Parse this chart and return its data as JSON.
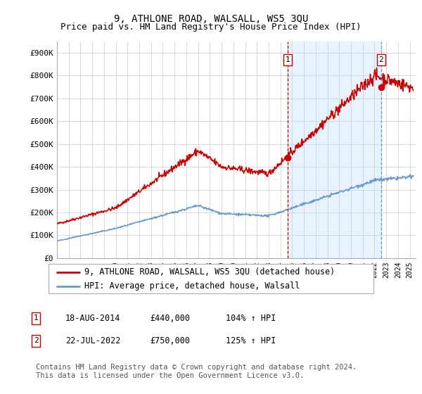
{
  "title": "9, ATHLONE ROAD, WALSALL, WS5 3QU",
  "subtitle": "Price paid vs. HM Land Registry's House Price Index (HPI)",
  "ylabel_ticks": [
    "£0",
    "£100K",
    "£200K",
    "£300K",
    "£400K",
    "£500K",
    "£600K",
    "£700K",
    "£800K",
    "£900K"
  ],
  "ylim": [
    0,
    950000
  ],
  "xlim_start": 1995.0,
  "xlim_end": 2025.5,
  "sale1_date": 2014.625,
  "sale1_price": 440000,
  "sale1_label": "1",
  "sale2_date": 2022.55,
  "sale2_price": 750000,
  "sale2_label": "2",
  "legend_line1": "9, ATHLONE ROAD, WALSALL, WS5 3QU (detached house)",
  "legend_line2": "HPI: Average price, detached house, Walsall",
  "table_row1": [
    "1",
    "18-AUG-2014",
    "£440,000",
    "104% ↑ HPI"
  ],
  "table_row2": [
    "2",
    "22-JUL-2022",
    "£750,000",
    "125% ↑ HPI"
  ],
  "footnote": "Contains HM Land Registry data © Crown copyright and database right 2024.\nThis data is licensed under the Open Government Licence v3.0.",
  "hpi_color": "#6699cc",
  "price_color": "#cc0000",
  "shade_color": "#ddeeff",
  "grid_color": "#cccccc",
  "background_color": "#ffffff",
  "title_fontsize": 10,
  "subtitle_fontsize": 9,
  "tick_label_fontsize": 8,
  "legend_fontsize": 8.5,
  "table_fontsize": 8.5,
  "footnote_fontsize": 7.5
}
